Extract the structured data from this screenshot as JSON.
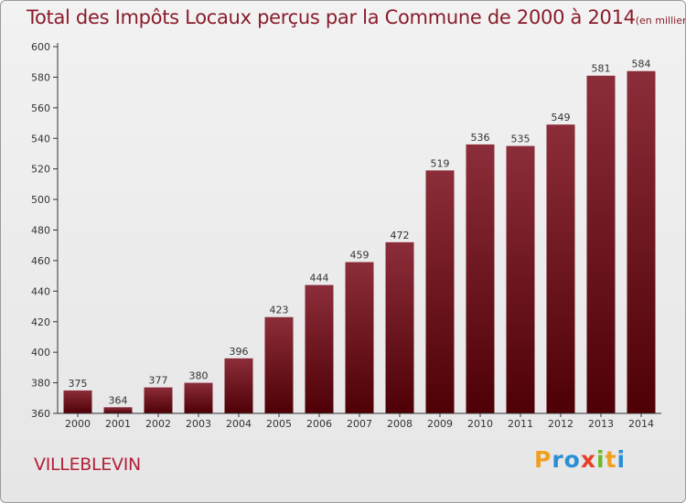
{
  "chart_data": {
    "type": "bar",
    "title": "Total des Impôts Locaux perçus par la Commune de 2000 à 2014",
    "unit_note": "(en milliers d'€)",
    "categories": [
      "2000",
      "2001",
      "2002",
      "2003",
      "2004",
      "2005",
      "2006",
      "2007",
      "2008",
      "2009",
      "2010",
      "2011",
      "2012",
      "2013",
      "2014"
    ],
    "values": [
      375,
      364,
      377,
      380,
      396,
      423,
      444,
      459,
      472,
      519,
      536,
      535,
      549,
      581,
      584
    ],
    "ylim": [
      360,
      600
    ],
    "yticks": [
      360,
      380,
      400,
      420,
      440,
      460,
      480,
      500,
      520,
      540,
      560,
      580,
      600
    ],
    "xlabel": "",
    "ylabel": "",
    "grid": false,
    "legend": "none",
    "bar_color": "#6b0f1a"
  },
  "commune": "VILLEBLEVIN",
  "logo": "Proxiti",
  "colors": {
    "title": "#8a1c2b",
    "commune": "#b21f3a",
    "axis": "#333333"
  }
}
